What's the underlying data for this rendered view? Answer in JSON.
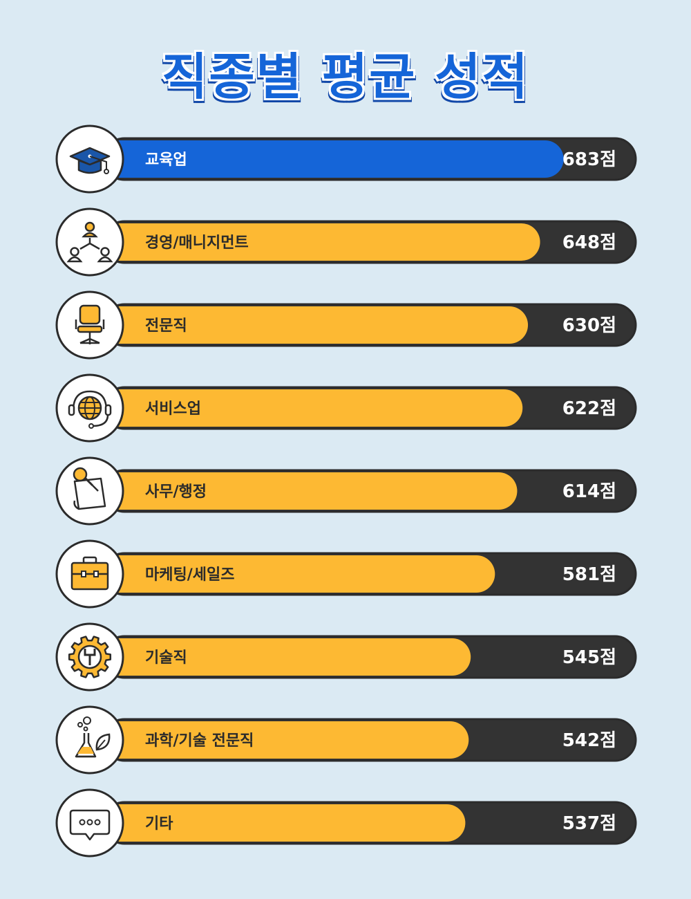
{
  "title": "직종별 평균 성적",
  "colors": {
    "background": "#dbeaf3",
    "highlight": "#1565d8",
    "bar": "#fdb933",
    "track": "#333333",
    "outline": "#2b2b2b"
  },
  "chart_data": {
    "type": "bar",
    "orientation": "horizontal",
    "title": "직종별 평균 성적",
    "unit_suffix": "점",
    "xlim": [
      0,
      790
    ],
    "categories": [
      "교육업",
      "경영/매니지먼트",
      "전문직",
      "서비스업",
      "사무/행정",
      "마케팅/세일즈",
      "기술직",
      "과학/기술 전문직",
      "기타"
    ],
    "values": [
      683,
      648,
      630,
      622,
      614,
      581,
      545,
      542,
      537
    ],
    "value_labels": [
      "683점",
      "648점",
      "630점",
      "622점",
      "614점",
      "581점",
      "545점",
      "542점",
      "537점"
    ],
    "icons": [
      "graduation-cap-icon",
      "org-chart-icon",
      "office-chair-icon",
      "headset-globe-icon",
      "pushpin-note-icon",
      "briefcase-icon",
      "gear-wrench-icon",
      "flask-leaf-icon",
      "speech-bubble-icon"
    ],
    "highlighted_index": 0
  }
}
